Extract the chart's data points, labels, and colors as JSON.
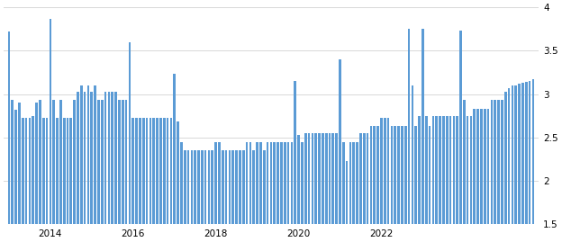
{
  "bar_color": "#5b9bd5",
  "background_color": "#ffffff",
  "grid_color": "#d8d8d8",
  "ylim": [
    1.5,
    4.0
  ],
  "yticks": [
    1.5,
    2.0,
    2.5,
    3.0,
    3.5,
    4.0
  ],
  "xlabel_years": [
    2014,
    2016,
    2018,
    2020,
    2022
  ],
  "values": [
    3.72,
    2.93,
    2.82,
    2.9,
    2.73,
    2.73,
    2.73,
    2.75,
    2.9,
    2.93,
    2.73,
    2.73,
    3.87,
    2.93,
    2.73,
    2.93,
    2.73,
    2.73,
    2.73,
    2.93,
    3.03,
    3.1,
    3.03,
    3.1,
    3.03,
    3.1,
    2.93,
    2.93,
    3.03,
    3.03,
    3.03,
    3.03,
    2.93,
    2.93,
    2.93,
    3.6,
    2.73,
    2.73,
    2.73,
    2.73,
    2.73,
    2.73,
    2.73,
    2.73,
    2.73,
    2.73,
    2.73,
    2.73,
    3.23,
    2.68,
    2.45,
    2.35,
    2.35,
    2.35,
    2.35,
    2.35,
    2.35,
    2.35,
    2.35,
    2.35,
    2.45,
    2.45,
    2.35,
    2.35,
    2.35,
    2.35,
    2.35,
    2.35,
    2.35,
    2.45,
    2.45,
    2.35,
    2.45,
    2.45,
    2.35,
    2.45,
    2.45,
    2.45,
    2.45,
    2.45,
    2.45,
    2.45,
    2.45,
    3.15,
    2.53,
    2.45,
    2.55,
    2.55,
    2.55,
    2.55,
    2.55,
    2.55,
    2.55,
    2.55,
    2.55,
    2.55,
    3.4,
    2.45,
    2.23,
    2.45,
    2.45,
    2.45,
    2.55,
    2.55,
    2.55,
    2.63,
    2.63,
    2.63,
    2.73,
    2.73,
    2.73,
    2.63,
    2.63,
    2.63,
    2.63,
    2.63,
    3.75,
    3.1,
    2.63,
    2.75,
    3.75,
    2.75,
    2.63,
    2.75,
    2.75,
    2.75,
    2.75,
    2.75,
    2.75,
    2.75,
    2.75,
    3.73,
    2.93,
    2.75,
    2.75,
    2.83,
    2.83,
    2.83,
    2.83,
    2.83,
    2.93,
    2.93,
    2.93,
    2.93,
    3.03,
    3.07,
    3.1,
    3.1,
    3.12,
    3.13,
    3.14,
    3.15,
    3.17
  ],
  "start_year": 2013,
  "start_month": 1
}
